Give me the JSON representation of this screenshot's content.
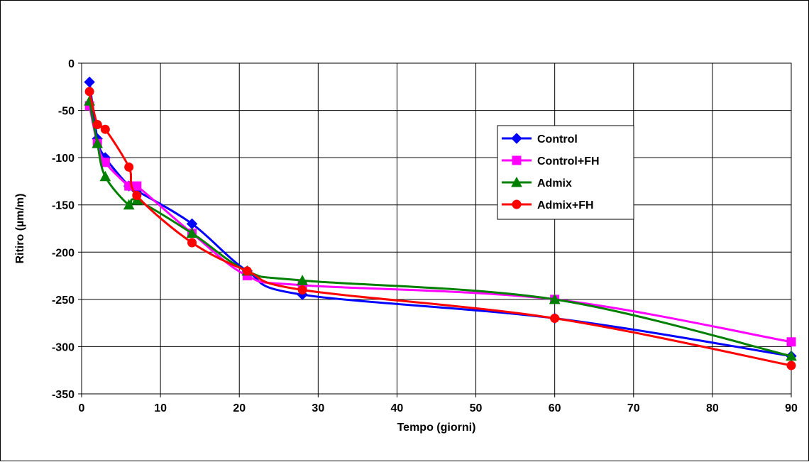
{
  "chart_data": {
    "type": "line",
    "title": "",
    "xlabel": "Tempo (giorni)",
    "ylabel": "Ritiro (µm/m)",
    "xlim": [
      0,
      90
    ],
    "ylim": [
      -350,
      0
    ],
    "xticks": [
      0,
      10,
      20,
      30,
      40,
      50,
      60,
      70,
      80,
      90
    ],
    "yticks": [
      0,
      -50,
      -100,
      -150,
      -200,
      -250,
      -300,
      -350
    ],
    "grid": true,
    "legend_position": "right-inside",
    "series": [
      {
        "name": "Control",
        "color": "#0000ff",
        "marker": "diamond",
        "x": [
          1,
          2,
          3,
          6,
          7,
          14,
          21,
          28,
          60,
          90
        ],
        "y": [
          -20,
          -80,
          -100,
          -130,
          -135,
          -170,
          -220,
          -245,
          -270,
          -310
        ]
      },
      {
        "name": "Control+FH",
        "color": "#ff00ff",
        "marker": "square",
        "x": [
          1,
          2,
          3,
          6,
          7,
          14,
          21,
          28,
          60,
          90
        ],
        "y": [
          -45,
          -85,
          -105,
          -130,
          -130,
          -180,
          -225,
          -235,
          -250,
          -295
        ]
      },
      {
        "name": "Admix",
        "color": "#008000",
        "marker": "triangle",
        "x": [
          1,
          2,
          3,
          6,
          7,
          14,
          21,
          28,
          60,
          90
        ],
        "y": [
          -40,
          -85,
          -120,
          -150,
          -145,
          -180,
          -220,
          -230,
          -250,
          -310
        ]
      },
      {
        "name": "Admix+FH",
        "color": "#ff0000",
        "marker": "circle",
        "x": [
          1,
          2,
          3,
          6,
          7,
          14,
          21,
          28,
          60,
          90
        ],
        "y": [
          -30,
          -65,
          -70,
          -110,
          -140,
          -190,
          -220,
          -240,
          -270,
          -320
        ]
      }
    ]
  }
}
